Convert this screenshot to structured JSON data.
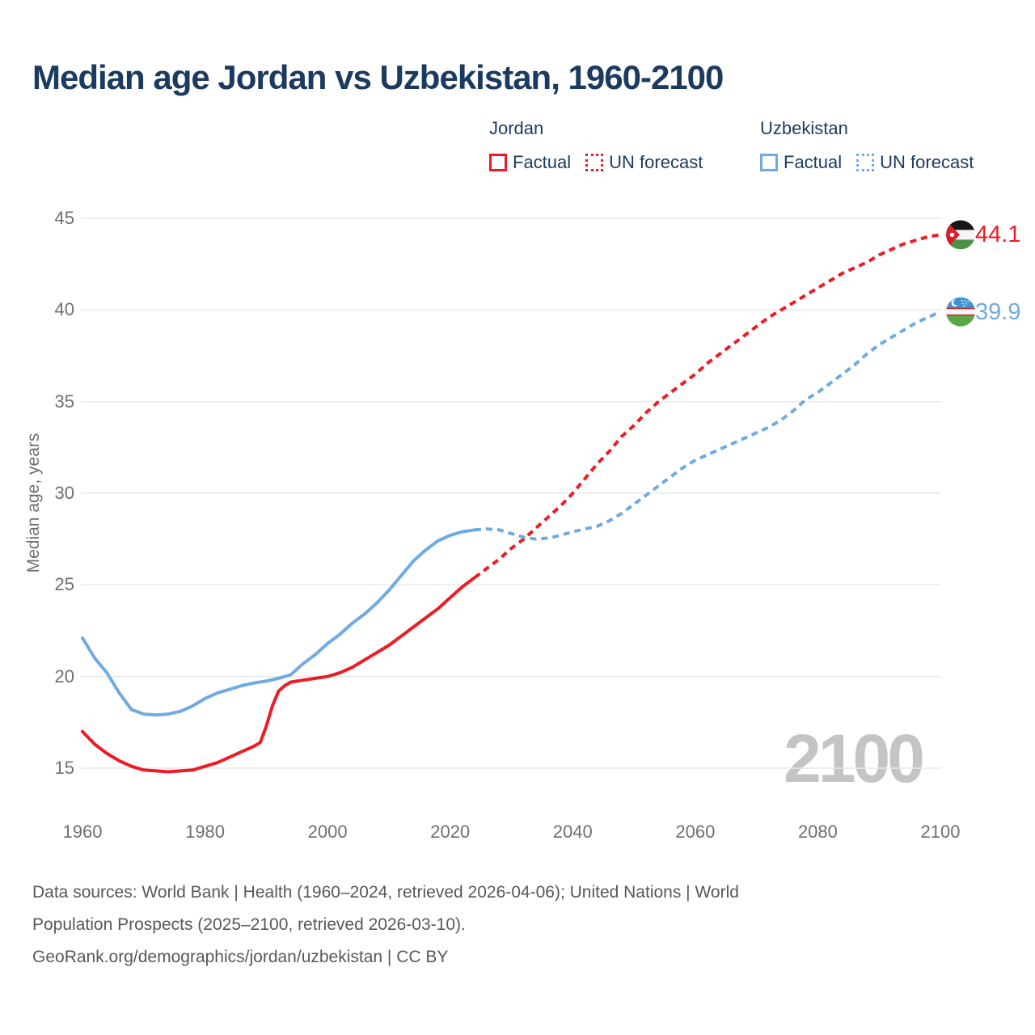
{
  "title": "Median age Jordan vs Uzbekistan, 1960-2100",
  "watermark": "2100",
  "colors": {
    "jordan": "#ee1b24",
    "uzbekistan": "#6fabe3",
    "title_text": "#1b3a5f",
    "axis_text": "#6f6f6f",
    "gridline": "#e9e9e9",
    "watermark": "#c4c4c4",
    "footer_text": "#58585a"
  },
  "legend": {
    "groups": [
      {
        "label": "Jordan",
        "color": "#ee1b24",
        "items": [
          {
            "label": "Factual",
            "style": "solid"
          },
          {
            "label": "UN forecast",
            "style": "dashed"
          }
        ]
      },
      {
        "label": "Uzbekistan",
        "color": "#6fabe3",
        "items": [
          {
            "label": "Factual",
            "style": "solid"
          },
          {
            "label": "UN forecast",
            "style": "dashed"
          }
        ]
      }
    ]
  },
  "end_markers": [
    {
      "country": "Jordan",
      "label": "44.1",
      "value": 44.1,
      "color": "#ee1b24",
      "flag": "flag-jordan"
    },
    {
      "country": "Uzbekistan",
      "label": "39.9",
      "value": 39.9,
      "color": "#6fabe3",
      "flag": "flag-uzbekistan"
    }
  ],
  "footer": {
    "lines": [
      "Data sources: World Bank | Health (1960–2024, retrieved 2026-04-06); United Nations | World",
      "Population Prospects (2025–2100, retrieved 2026-03-10).",
      "GeoRank.org/demographics/jordan/uzbekistan | CC BY"
    ]
  },
  "chart_data": {
    "type": "line",
    "title": "Median age Jordan vs Uzbekistan, 1960-2100",
    "xlabel": "",
    "ylabel": "Median age, years",
    "xlim": [
      1960,
      2100
    ],
    "ylim": [
      15,
      45
    ],
    "x_ticks": [
      1960,
      1980,
      2000,
      2020,
      2040,
      2060,
      2080,
      2100
    ],
    "y_ticks": [
      15,
      20,
      25,
      30,
      35,
      40,
      45
    ],
    "grid": "horizontal",
    "legend_position": "top",
    "series": [
      {
        "name": "Jordan Factual",
        "color": "#ee1b24",
        "dash": false,
        "points": [
          [
            1960,
            17.0
          ],
          [
            1962,
            16.3
          ],
          [
            1964,
            15.8
          ],
          [
            1966,
            15.4
          ],
          [
            1968,
            15.1
          ],
          [
            1970,
            14.9
          ],
          [
            1972,
            14.85
          ],
          [
            1974,
            14.8
          ],
          [
            1976,
            14.85
          ],
          [
            1978,
            14.9
          ],
          [
            1980,
            15.1
          ],
          [
            1982,
            15.3
          ],
          [
            1984,
            15.6
          ],
          [
            1986,
            15.9
          ],
          [
            1988,
            16.2
          ],
          [
            1989,
            16.4
          ],
          [
            1990,
            17.3
          ],
          [
            1991,
            18.4
          ],
          [
            1992,
            19.2
          ],
          [
            1993,
            19.5
          ],
          [
            1994,
            19.7
          ],
          [
            1996,
            19.8
          ],
          [
            1998,
            19.9
          ],
          [
            2000,
            20.0
          ],
          [
            2002,
            20.2
          ],
          [
            2004,
            20.5
          ],
          [
            2006,
            20.9
          ],
          [
            2008,
            21.3
          ],
          [
            2010,
            21.7
          ],
          [
            2012,
            22.2
          ],
          [
            2014,
            22.7
          ],
          [
            2016,
            23.2
          ],
          [
            2018,
            23.7
          ],
          [
            2020,
            24.3
          ],
          [
            2022,
            24.9
          ],
          [
            2024,
            25.4
          ]
        ]
      },
      {
        "name": "Jordan UN forecast",
        "color": "#ee1b24",
        "dash": true,
        "points": [
          [
            2024,
            25.4
          ],
          [
            2026,
            25.9
          ],
          [
            2028,
            26.4
          ],
          [
            2030,
            27.0
          ],
          [
            2032,
            27.5
          ],
          [
            2034,
            28.1
          ],
          [
            2036,
            28.7
          ],
          [
            2038,
            29.3
          ],
          [
            2040,
            30.0
          ],
          [
            2042,
            30.8
          ],
          [
            2044,
            31.6
          ],
          [
            2046,
            32.3
          ],
          [
            2048,
            33.1
          ],
          [
            2050,
            33.7
          ],
          [
            2052,
            34.4
          ],
          [
            2054,
            35.0
          ],
          [
            2056,
            35.5
          ],
          [
            2058,
            36.0
          ],
          [
            2060,
            36.5
          ],
          [
            2062,
            37.1
          ],
          [
            2064,
            37.6
          ],
          [
            2066,
            38.1
          ],
          [
            2068,
            38.6
          ],
          [
            2070,
            39.1
          ],
          [
            2072,
            39.6
          ],
          [
            2074,
            40.0
          ],
          [
            2076,
            40.4
          ],
          [
            2078,
            40.8
          ],
          [
            2080,
            41.2
          ],
          [
            2082,
            41.6
          ],
          [
            2084,
            42.0
          ],
          [
            2086,
            42.3
          ],
          [
            2088,
            42.6
          ],
          [
            2090,
            43.0
          ],
          [
            2092,
            43.3
          ],
          [
            2094,
            43.6
          ],
          [
            2096,
            43.8
          ],
          [
            2098,
            44.0
          ],
          [
            2100,
            44.1
          ]
        ]
      },
      {
        "name": "Uzbekistan Factual",
        "color": "#6fabe3",
        "dash": false,
        "points": [
          [
            1960,
            22.1
          ],
          [
            1962,
            21.0
          ],
          [
            1964,
            20.2
          ],
          [
            1966,
            19.1
          ],
          [
            1968,
            18.2
          ],
          [
            1970,
            17.95
          ],
          [
            1972,
            17.9
          ],
          [
            1974,
            17.95
          ],
          [
            1976,
            18.1
          ],
          [
            1978,
            18.4
          ],
          [
            1980,
            18.8
          ],
          [
            1982,
            19.1
          ],
          [
            1984,
            19.3
          ],
          [
            1986,
            19.5
          ],
          [
            1988,
            19.65
          ],
          [
            1990,
            19.75
          ],
          [
            1992,
            19.9
          ],
          [
            1994,
            20.1
          ],
          [
            1996,
            20.7
          ],
          [
            1998,
            21.2
          ],
          [
            2000,
            21.8
          ],
          [
            2002,
            22.3
          ],
          [
            2004,
            22.9
          ],
          [
            2006,
            23.4
          ],
          [
            2008,
            24.0
          ],
          [
            2010,
            24.7
          ],
          [
            2012,
            25.5
          ],
          [
            2014,
            26.3
          ],
          [
            2016,
            26.9
          ],
          [
            2018,
            27.4
          ],
          [
            2020,
            27.7
          ],
          [
            2022,
            27.9
          ],
          [
            2024,
            28.0
          ]
        ]
      },
      {
        "name": "Uzbekistan UN forecast",
        "color": "#6fabe3",
        "dash": true,
        "points": [
          [
            2024,
            28.0
          ],
          [
            2026,
            28.05
          ],
          [
            2028,
            28.0
          ],
          [
            2030,
            27.8
          ],
          [
            2032,
            27.6
          ],
          [
            2034,
            27.5
          ],
          [
            2036,
            27.55
          ],
          [
            2038,
            27.7
          ],
          [
            2040,
            27.9
          ],
          [
            2042,
            28.05
          ],
          [
            2044,
            28.2
          ],
          [
            2046,
            28.5
          ],
          [
            2048,
            28.9
          ],
          [
            2050,
            29.4
          ],
          [
            2052,
            29.9
          ],
          [
            2054,
            30.4
          ],
          [
            2056,
            30.9
          ],
          [
            2058,
            31.4
          ],
          [
            2060,
            31.8
          ],
          [
            2062,
            32.1
          ],
          [
            2064,
            32.4
          ],
          [
            2066,
            32.7
          ],
          [
            2068,
            33.0
          ],
          [
            2070,
            33.3
          ],
          [
            2072,
            33.6
          ],
          [
            2074,
            34.0
          ],
          [
            2076,
            34.5
          ],
          [
            2078,
            35.1
          ],
          [
            2080,
            35.5
          ],
          [
            2082,
            36.0
          ],
          [
            2084,
            36.5
          ],
          [
            2086,
            37.0
          ],
          [
            2088,
            37.6
          ],
          [
            2090,
            38.1
          ],
          [
            2092,
            38.5
          ],
          [
            2094,
            38.9
          ],
          [
            2096,
            39.3
          ],
          [
            2098,
            39.6
          ],
          [
            2100,
            39.9
          ]
        ]
      }
    ]
  }
}
